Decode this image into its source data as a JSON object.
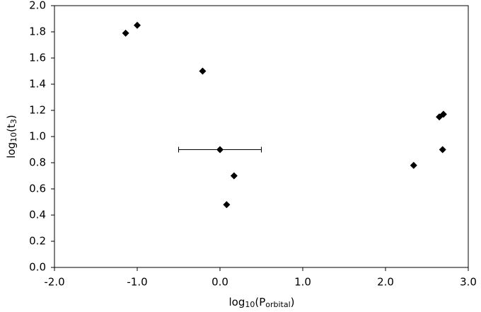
{
  "chart_data": {
    "type": "scatter",
    "x": [
      -1.14,
      -1.0,
      -0.21,
      0.0,
      0.17,
      0.08,
      2.34,
      2.65,
      2.7,
      2.69
    ],
    "values": [
      1.79,
      1.85,
      1.5,
      0.9,
      0.7,
      0.48,
      0.78,
      1.15,
      1.17,
      0.9
    ],
    "xerr": [
      null,
      null,
      null,
      0.5,
      null,
      null,
      null,
      null,
      null,
      null
    ],
    "color": "#000000",
    "xlim": [
      -2,
      3
    ],
    "xticks": [
      {
        "value": -2,
        "label": "-2.0"
      },
      {
        "value": -1,
        "label": "-1.0"
      },
      {
        "value": 0,
        "label": "0.0"
      },
      {
        "value": 1,
        "label": "1.0"
      },
      {
        "value": 2,
        "label": "2.0"
      },
      {
        "value": 3,
        "label": "3.0"
      }
    ],
    "ylim": [
      0,
      2
    ],
    "yticks": [
      {
        "value": 0,
        "label": "0.0"
      },
      {
        "value": 0.2,
        "label": "0.2"
      },
      {
        "value": 0.4,
        "label": "0.4"
      },
      {
        "value": 0.6,
        "label": "0.6"
      },
      {
        "value": 0.8,
        "label": "0.8"
      },
      {
        "value": 1,
        "label": "1.0"
      },
      {
        "value": 1.2,
        "label": "1.2"
      },
      {
        "value": 1.4,
        "label": "1.4"
      },
      {
        "value": 1.6,
        "label": "1.6"
      },
      {
        "value": 1.8,
        "label": "1.8"
      },
      {
        "value": 2,
        "label": "2.0"
      }
    ],
    "xlabel": [
      "log",
      "10",
      "(P",
      "orbital",
      ")"
    ],
    "ylabel": [
      "log",
      "10",
      "(t",
      "3",
      ")"
    ]
  }
}
